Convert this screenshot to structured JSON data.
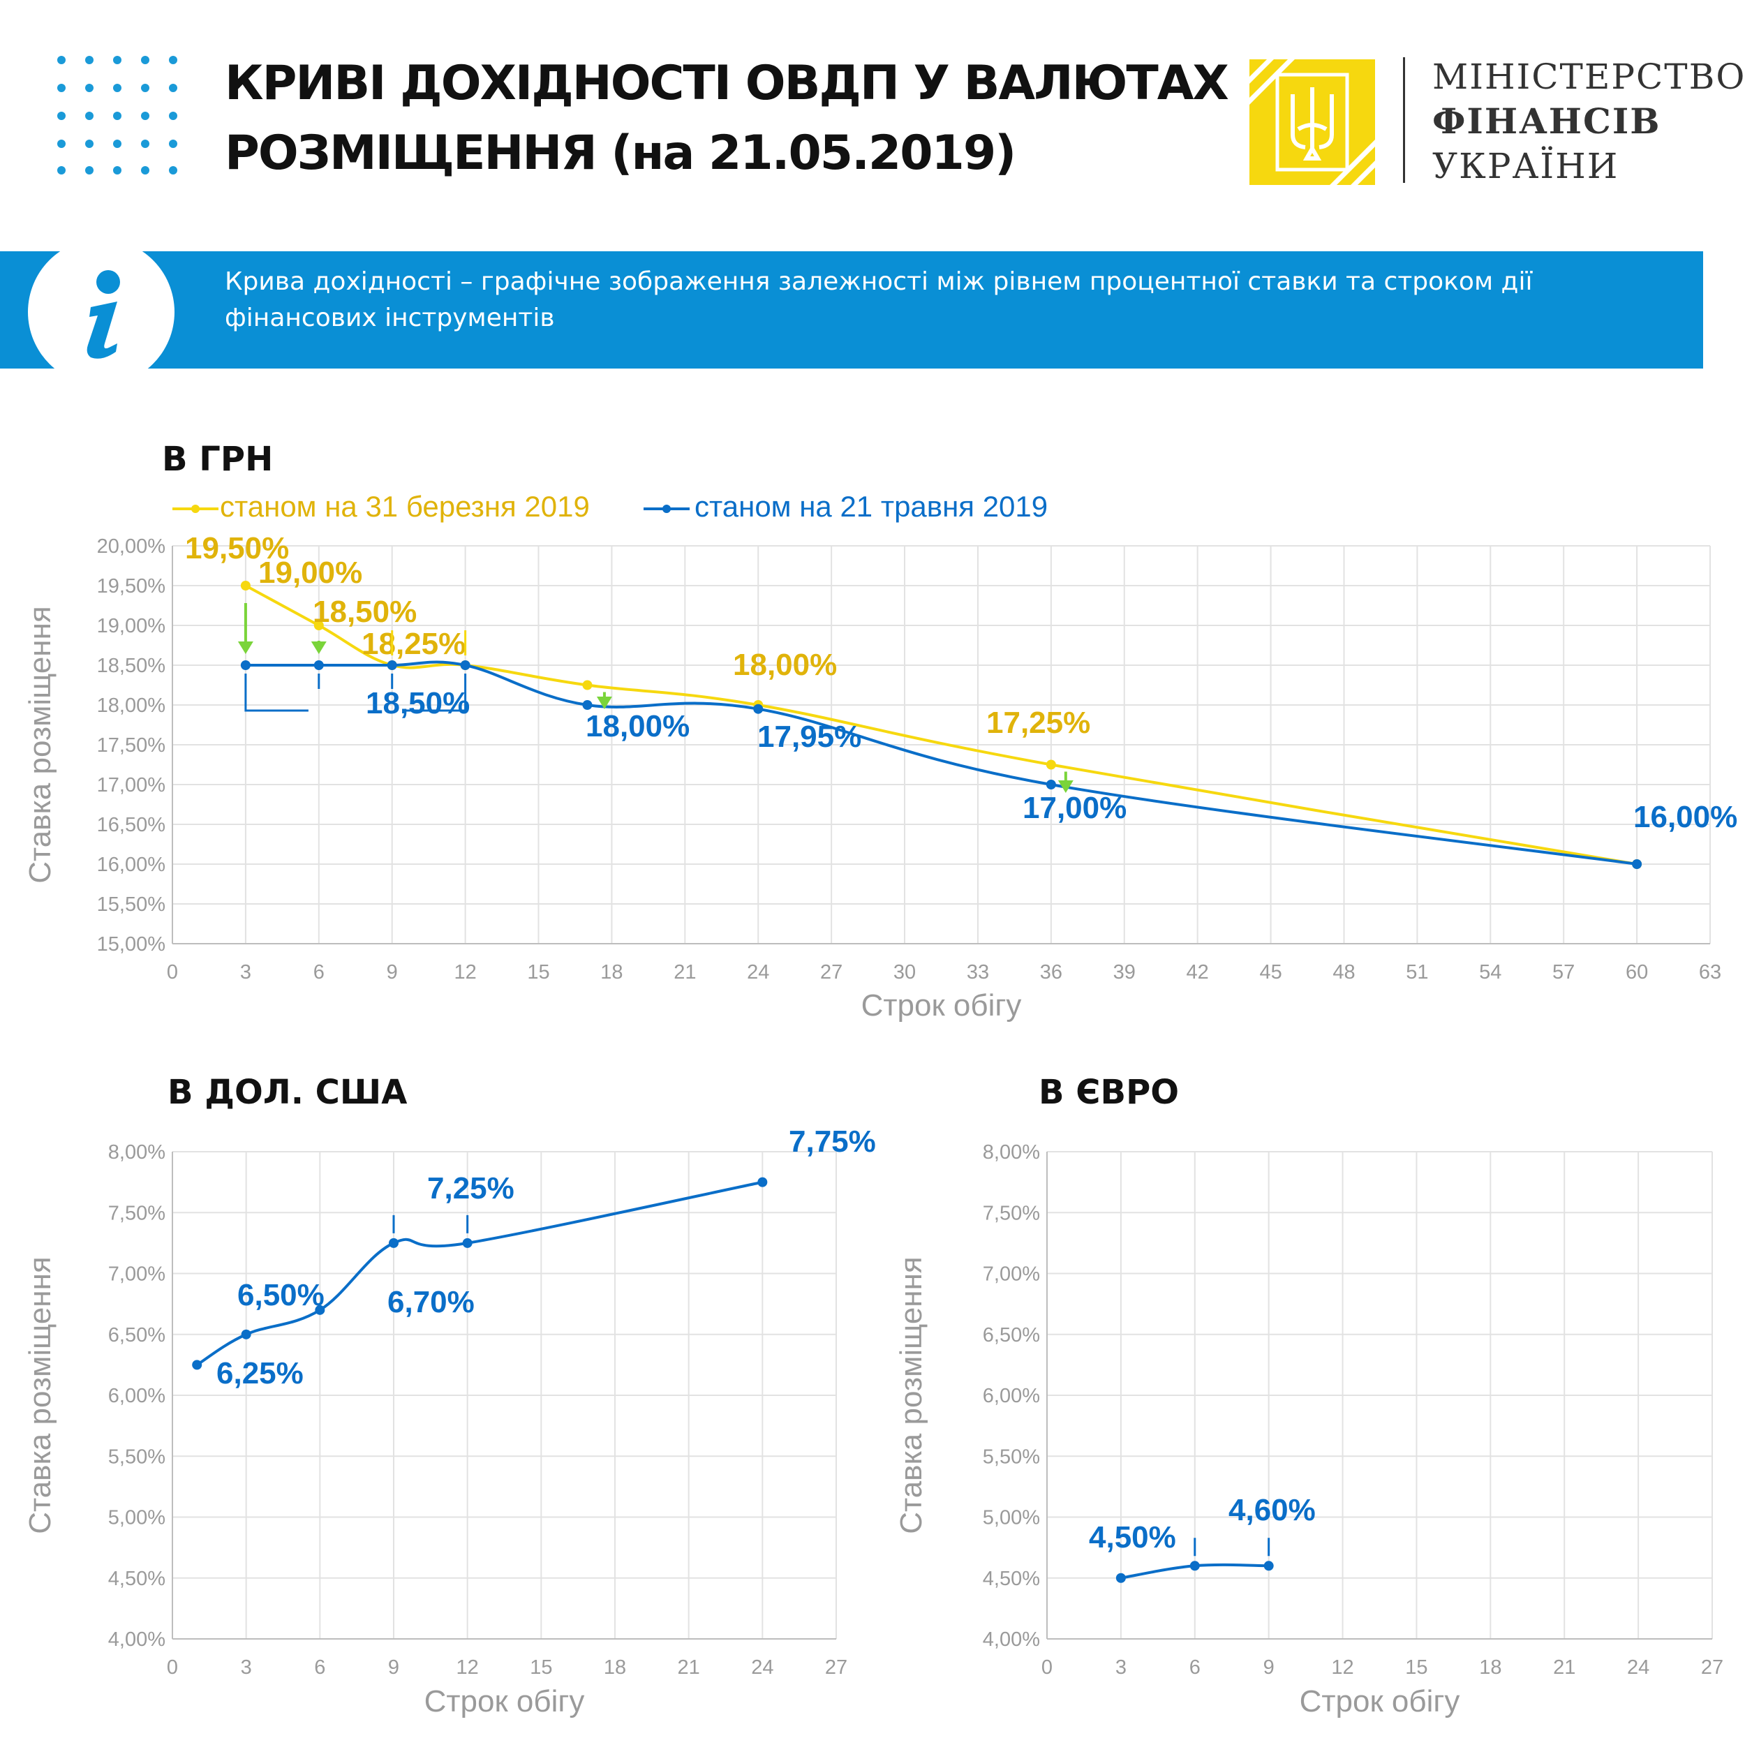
{
  "header": {
    "title_line1": "КРИВІ ДОХІДНОСТІ ОВДП У ВАЛЮТАХ",
    "title_line2": "РОЗМІЩЕННЯ (на 21.05.2019)",
    "ministry_line1": "МІНІСТЕРСТВО",
    "ministry_line2": "ФІНАНСІВ",
    "ministry_line3": "УКРАЇНИ"
  },
  "info": {
    "icon": "info-icon",
    "text": "Крива дохідності – графічне зображення залежності між рівнем процентної ставки та строком дії фінансових інструментів"
  },
  "colors": {
    "blue": "#0a6ec8",
    "yellow": "#f6d80f",
    "label_yellow": "#e0b30a",
    "green": "#7ad43a",
    "grid": "#e2e2e2",
    "axis_text": "#9a9a9a",
    "band": "#0a8fd5"
  },
  "chart_data": [
    {
      "type": "line",
      "title": "В ГРН",
      "xlabel": "Строк обігу",
      "ylabel": "Ставка розміщення",
      "xlim": [
        0,
        63
      ],
      "ylim": [
        15,
        20
      ],
      "x_ticks": [
        "0",
        "3",
        "6",
        "9",
        "12",
        "15",
        "18",
        "21",
        "24",
        "27",
        "30",
        "33",
        "36",
        "39",
        "42",
        "45",
        "48",
        "51",
        "54",
        "57",
        "60",
        "63"
      ],
      "y_ticks": [
        "15,00%",
        "15,50%",
        "16,00%",
        "16,50%",
        "17,00%",
        "17,50%",
        "18,00%",
        "18,50%",
        "19,00%",
        "19,50%",
        "20,00%"
      ],
      "series": [
        {
          "name": "станом на 31 березня 2019",
          "color": "yellow",
          "x": [
            3,
            6,
            9,
            12,
            17,
            24,
            36,
            60
          ],
          "y": [
            19.5,
            19.0,
            18.5,
            18.5,
            18.25,
            18.0,
            17.25,
            16.0
          ]
        },
        {
          "name": "станом на 21 травня 2019",
          "color": "blue",
          "x": [
            3,
            6,
            9,
            12,
            17,
            24,
            36,
            60
          ],
          "y": [
            18.5,
            18.5,
            18.5,
            18.5,
            18.0,
            17.95,
            17.0,
            16.0
          ]
        }
      ],
      "annotations": [
        {
          "text": "19,50%",
          "color": "yellow"
        },
        {
          "text": "19,00%",
          "color": "yellow"
        },
        {
          "text": "18,50%",
          "color": "yellow"
        },
        {
          "text": "18,25%",
          "color": "yellow"
        },
        {
          "text": "18,00%",
          "color": "yellow"
        },
        {
          "text": "17,25%",
          "color": "yellow"
        },
        {
          "text": "18,50%",
          "color": "blue"
        },
        {
          "text": "18,00%",
          "color": "blue"
        },
        {
          "text": "17,95%",
          "color": "blue"
        },
        {
          "text": "17,00%",
          "color": "blue"
        },
        {
          "text": "16,00%",
          "color": "blue"
        }
      ]
    },
    {
      "type": "line",
      "title": "В ДОЛ. США",
      "xlabel": "Строк обігу",
      "ylabel": "Ставка розміщення",
      "xlim": [
        0,
        27
      ],
      "ylim": [
        4,
        8
      ],
      "x_ticks": [
        "0",
        "3",
        "6",
        "9",
        "12",
        "15",
        "18",
        "21",
        "24",
        "27"
      ],
      "y_ticks": [
        "4,00%",
        "4,50%",
        "5,00%",
        "5,50%",
        "6,00%",
        "6,50%",
        "7,00%",
        "7,50%",
        "8,00%"
      ],
      "series": [
        {
          "color": "blue",
          "x": [
            1,
            3,
            6,
            9,
            12,
            24
          ],
          "y": [
            6.25,
            6.5,
            6.7,
            7.25,
            7.25,
            7.75
          ]
        }
      ],
      "annotations": [
        {
          "text": "6,25%",
          "color": "blue"
        },
        {
          "text": "6,50%",
          "color": "blue"
        },
        {
          "text": "6,70%",
          "color": "blue"
        },
        {
          "text": "7,25%",
          "color": "blue"
        },
        {
          "text": "7,75%",
          "color": "blue"
        }
      ]
    },
    {
      "type": "line",
      "title": "В ЄВРО",
      "xlabel": "Строк обігу",
      "ylabel": "Ставка розміщення",
      "xlim": [
        0,
        27
      ],
      "ylim": [
        4,
        8
      ],
      "x_ticks": [
        "0",
        "3",
        "6",
        "9",
        "12",
        "15",
        "18",
        "21",
        "24",
        "27"
      ],
      "y_ticks": [
        "4,00%",
        "4,50%",
        "5,00%",
        "5,50%",
        "6,00%",
        "6,50%",
        "7,00%",
        "7,50%",
        "8,00%"
      ],
      "series": [
        {
          "color": "blue",
          "x": [
            3,
            6,
            9
          ],
          "y": [
            4.5,
            4.6,
            4.6
          ]
        }
      ],
      "annotations": [
        {
          "text": "4,50%",
          "color": "blue"
        },
        {
          "text": "4,60%",
          "color": "blue"
        }
      ]
    }
  ]
}
